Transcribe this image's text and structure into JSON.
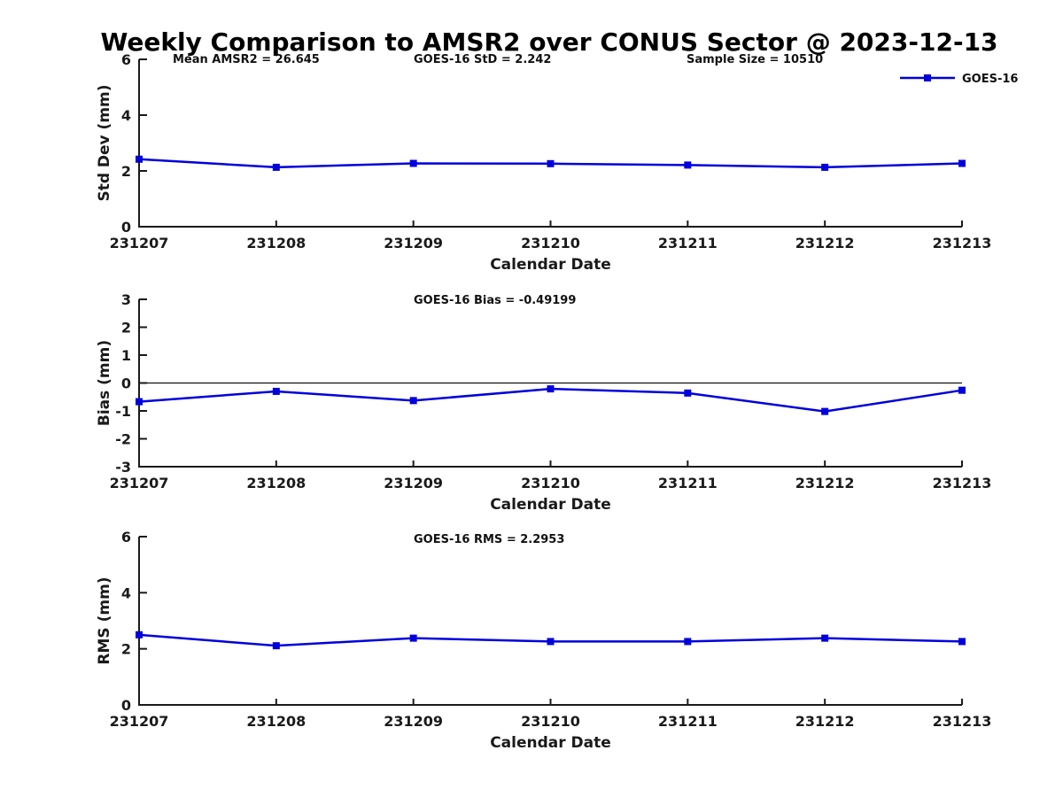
{
  "title": "Weekly Comparison to AMSR2 over CONUS Sector @ 2023-12-13",
  "legend": {
    "label": "GOES-16",
    "color": "#0000dd"
  },
  "chart_data": [
    {
      "type": "line",
      "id": "std-dev",
      "ylabel": "Std Dev (mm)",
      "xlabel": "Calendar Date",
      "categories": [
        "231207",
        "231208",
        "231209",
        "231210",
        "231211",
        "231212",
        "231213"
      ],
      "series": [
        {
          "name": "GOES-16",
          "color": "#0000dd",
          "marker": "square",
          "values": [
            2.42,
            2.13,
            2.27,
            2.26,
            2.21,
            2.13,
            2.27
          ]
        }
      ],
      "ylim": [
        0,
        6
      ],
      "yticks": [
        0,
        2,
        4,
        6
      ],
      "grid": false,
      "legend_position": "top-right-outside",
      "annotations": [
        "Mean AMSR2 = 26.645",
        "GOES-16 StD = 2.242",
        "Sample Size = 10510"
      ]
    },
    {
      "type": "line",
      "id": "bias",
      "subtitle": "GOES-16 Bias  = -0.49199",
      "ylabel": "Bias (mm)",
      "xlabel": "Calendar Date",
      "categories": [
        "231207",
        "231208",
        "231209",
        "231210",
        "231211",
        "231212",
        "231213"
      ],
      "series": [
        {
          "name": "GOES-16",
          "color": "#0000dd",
          "marker": "square",
          "values": [
            -0.67,
            -0.3,
            -0.63,
            -0.21,
            -0.36,
            -1.02,
            -0.26
          ]
        }
      ],
      "ylim": [
        -3,
        3
      ],
      "yticks": [
        -3,
        -2,
        -1,
        0,
        1,
        2,
        3
      ],
      "zero_line": true,
      "grid": false
    },
    {
      "type": "line",
      "id": "rms",
      "subtitle": "GOES-16 RMS = 2.2953",
      "ylabel": "RMS (mm)",
      "xlabel": "Calendar Date",
      "categories": [
        "231207",
        "231208",
        "231209",
        "231210",
        "231211",
        "231212",
        "231213"
      ],
      "series": [
        {
          "name": "GOES-16",
          "color": "#0000dd",
          "marker": "square",
          "values": [
            2.5,
            2.11,
            2.38,
            2.26,
            2.26,
            2.38,
            2.26
          ]
        }
      ],
      "ylim": [
        0,
        6
      ],
      "yticks": [
        0,
        2,
        4,
        6
      ],
      "grid": false
    }
  ]
}
